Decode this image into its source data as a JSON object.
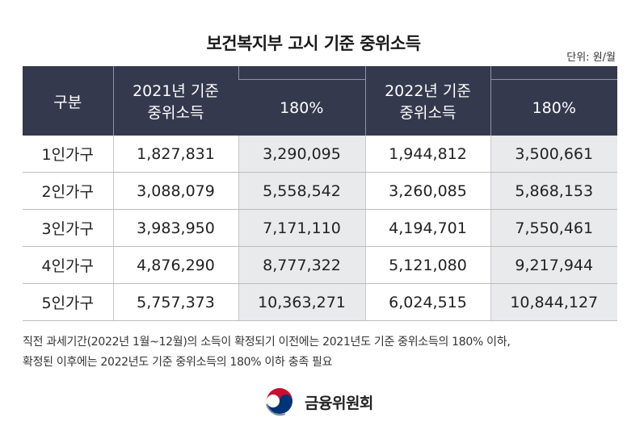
{
  "title": "보건복지부 고시 기준 중위소득",
  "unit": "단위: 원/월",
  "header": {
    "category": "구분",
    "y2021_line1": "2021년 기준",
    "y2021_line2": "중위소득",
    "y2021_pct": "180%",
    "y2022_line1": "2022년 기준",
    "y2022_line2": "중위소득",
    "y2022_pct": "180%"
  },
  "rows": [
    {
      "label": "1인가구",
      "v2021": "1,827,831",
      "p2021": "3,290,095",
      "v2022": "1,944,812",
      "p2022": "3,500,661"
    },
    {
      "label": "2인가구",
      "v2021": "3,088,079",
      "p2021": "5,558,542",
      "v2022": "3,260,085",
      "p2022": "5,868,153"
    },
    {
      "label": "3인가구",
      "v2021": "3,983,950",
      "p2021": "7,171,110",
      "v2022": "4,194,701",
      "p2022": "7,550,461"
    },
    {
      "label": "4인가구",
      "v2021": "4,876,290",
      "p2021": "8,777,322",
      "v2022": "5,121,080",
      "p2022": "9,217,944"
    },
    {
      "label": "5인가구",
      "v2021": "5,757,373",
      "p2021": "10,363,271",
      "v2022": "6,024,515",
      "p2022": "10,844,127"
    }
  ],
  "note": {
    "line1": "직전 과세기간(2022년 1월~12월)의 소득이 확정되기 이전에는 2021년도 기준 중위소득의 180% 이하,",
    "line2": "확정된 이후에는 2022년도 기준 중위소득의 180% 이하 충족 필요"
  },
  "footer": {
    "org": "금융위원회",
    "emblem_icon": "taegeuk-emblem-icon"
  },
  "colors": {
    "header_bg": "#34394e",
    "shade": "#e8eaec",
    "emblem_red": "#c8102e",
    "emblem_blue": "#003478"
  }
}
